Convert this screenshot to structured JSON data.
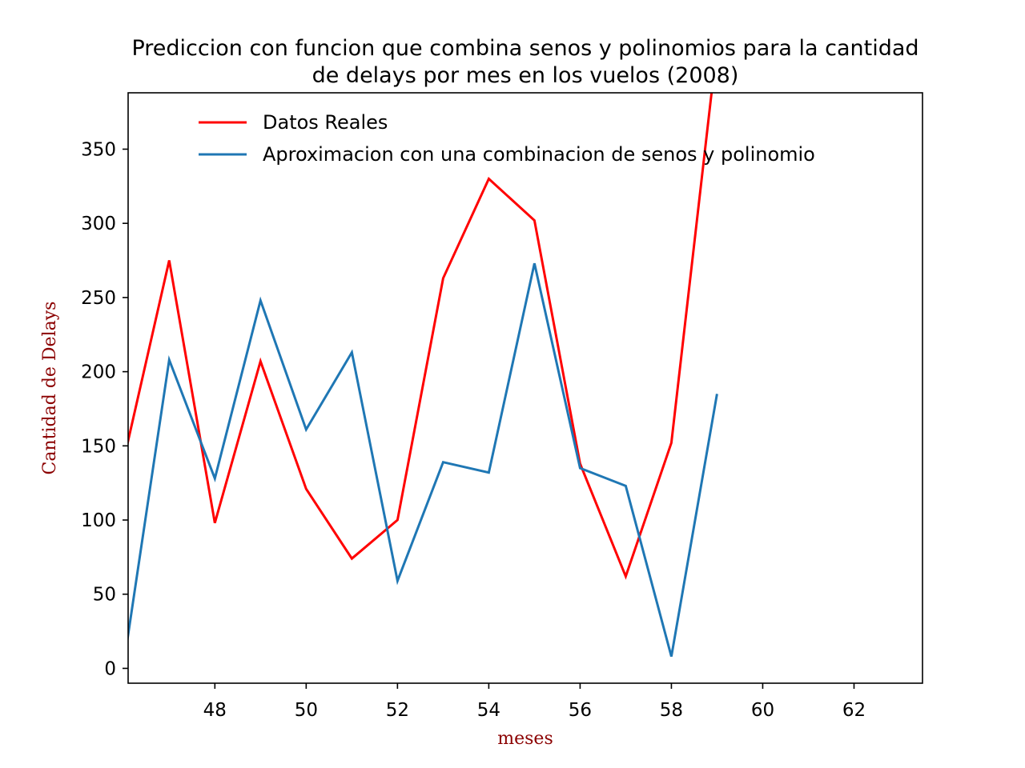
{
  "chart_data": {
    "type": "line",
    "title_lines": [
      "Prediccion con funcion que combina senos y polinomios para la cantidad",
      "de delays por mes en los vuelos (2008)"
    ],
    "xlabel": "meses",
    "ylabel": "Cantidad de Delays",
    "label_color": "#8b0000",
    "xlim": [
      46.1,
      63.5
    ],
    "ylim": [
      -10,
      388
    ],
    "xticks": [
      48,
      50,
      52,
      54,
      56,
      58,
      60,
      62
    ],
    "yticks": [
      0,
      50,
      100,
      150,
      200,
      250,
      300,
      350
    ],
    "legend_position": "upper-left",
    "grid": false,
    "series": [
      {
        "name": "Datos Reales",
        "color": "#ff0000",
        "x": [
          46,
          47,
          48,
          49,
          50,
          51,
          52,
          53,
          54,
          55,
          56,
          57,
          58,
          59
        ],
        "y": [
          140,
          275,
          98,
          207,
          121,
          74,
          100,
          263,
          330,
          302,
          138,
          62,
          152,
          420
        ]
      },
      {
        "name": "Aproximacion con una combinacion de senos y polinomio",
        "color": "#1f77b4",
        "x": [
          46,
          47,
          48,
          49,
          50,
          51,
          52,
          53,
          54,
          55,
          56,
          57,
          58,
          59
        ],
        "y": [
          2,
          208,
          128,
          248,
          161,
          213,
          59,
          139,
          132,
          273,
          135,
          123,
          8,
          185
        ]
      }
    ]
  }
}
